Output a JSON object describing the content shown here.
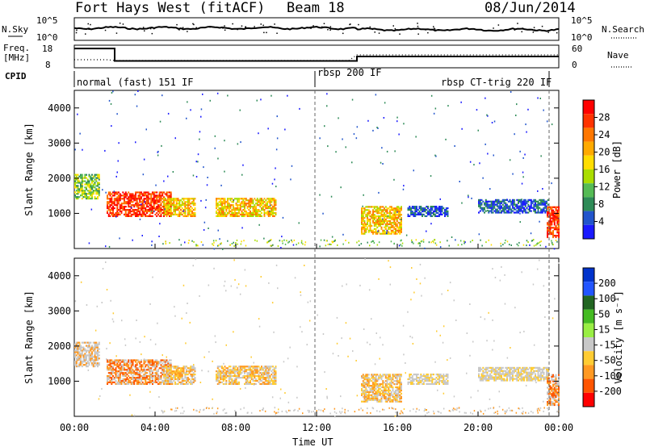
{
  "header": {
    "station": "Fort Hays West (fitACF)",
    "beam": "Beam 18",
    "date": "08/Jun/2014"
  },
  "strip": {
    "nsky_label": "N.Sky",
    "nsearch_label": "N.Search",
    "nsky_ticks": [
      "10^5",
      "10^0"
    ],
    "nsearch_ticks": [
      "10^5",
      "10^0"
    ],
    "freq_label": "Freq.",
    "freq_unit": "[MHz]",
    "freq_ticks": [
      18,
      8
    ],
    "nave_label": "Nave",
    "nave_ticks": [
      60,
      0
    ],
    "cpid_label": "CPID",
    "cpid_segments": [
      {
        "label": "normal (fast) 151 IF",
        "start": 0,
        "end": 12
      },
      {
        "label": "rbsp 200 IF",
        "start": 12,
        "end": 23.4
      },
      {
        "label": "rbsp CT-trig 220 IF",
        "start": 23.4,
        "end": 24
      }
    ],
    "freq_series": {
      "t": [
        0,
        2,
        2,
        14,
        14,
        24
      ],
      "v": [
        17.5,
        17.5,
        10.5,
        10.5,
        13,
        13
      ]
    }
  },
  "panels": [
    {
      "id": "power",
      "ylabel": "Slant Range [km]",
      "cbar_label": "Power [dB]",
      "cbar_ticks": [
        28,
        24,
        20,
        16,
        12,
        8,
        4
      ],
      "cbar_colors": [
        "#ff0000",
        "#ff3300",
        "#ff7700",
        "#ffaa00",
        "#ffdd00",
        "#aadd00",
        "#55bb55",
        "#2e8b57",
        "#2255cc",
        "#1a1aff"
      ]
    },
    {
      "id": "velocity",
      "ylabel": "Slant Range [km]",
      "cbar_label": "Velocity [m s⁻¹]",
      "cbar_ticks": [
        200,
        100,
        50,
        15,
        -15,
        -50,
        -100,
        -200
      ],
      "cbar_colors": [
        "#0033cc",
        "#2255ff",
        "#226622",
        "#44bb22",
        "#99ee44",
        "#c8c8c8",
        "#ffcc33",
        "#ff9922",
        "#ff5500",
        "#ff0000"
      ]
    }
  ],
  "chart_data": {
    "type": "heatmap",
    "x_ticks": [
      "00:00",
      "04:00",
      "08:00",
      "12:00",
      "16:00",
      "20:00",
      "00:00"
    ],
    "xlabel": "Time UT",
    "y_ticks": [
      1000,
      2000,
      3000,
      4000
    ],
    "ylim": [
      0,
      4500
    ],
    "xlim": [
      0,
      24
    ],
    "power_regions": [
      {
        "t0": 0,
        "t1": 1.2,
        "r0": 1400,
        "r1": 2100,
        "level": "green"
      },
      {
        "t0": 1.6,
        "t1": 4.8,
        "r0": 900,
        "r1": 1600,
        "level": "red"
      },
      {
        "t0": 4.4,
        "t1": 6.0,
        "r0": 900,
        "r1": 1400,
        "level": "orange"
      },
      {
        "t0": 7.0,
        "t1": 10.0,
        "r0": 900,
        "r1": 1400,
        "level": "orange"
      },
      {
        "t0": 14.2,
        "t1": 16.2,
        "r0": 400,
        "r1": 1200,
        "level": "orange"
      },
      {
        "t0": 16.5,
        "t1": 18.5,
        "r0": 900,
        "r1": 1200,
        "level": "blue"
      },
      {
        "t0": 20.0,
        "t1": 23.5,
        "r0": 1000,
        "r1": 1400,
        "level": "blue"
      },
      {
        "t0": 23.4,
        "t1": 24.0,
        "r0": 300,
        "r1": 1200,
        "level": "red"
      }
    ]
  }
}
